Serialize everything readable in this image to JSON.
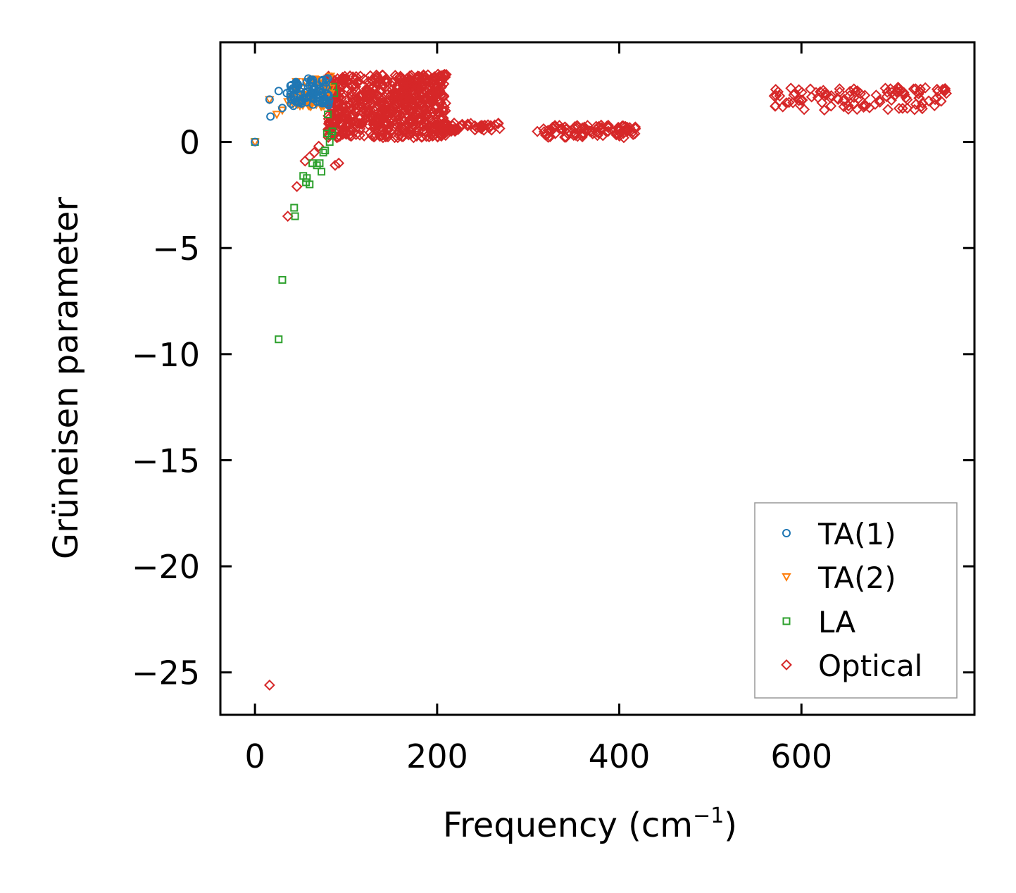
{
  "chart_data": {
    "type": "scatter",
    "title": "",
    "xlabel": "Frequency (cm",
    "xlabel_sup": "−1",
    "xlabel_close": ")",
    "ylabel": "Grüneisen parameter",
    "xlim": [
      -38,
      790
    ],
    "ylim": [
      -27,
      4.7
    ],
    "xticks": [
      0,
      200,
      400,
      600
    ],
    "xtick_labels": [
      "0",
      "200",
      "400",
      "600"
    ],
    "yticks": [
      0,
      -5,
      -10,
      -15,
      -20,
      -25
    ],
    "ytick_labels": [
      "0",
      "−5",
      "−10",
      "−15",
      "−20",
      "−25"
    ],
    "grid": false,
    "legend_position": "lower-right",
    "series": [
      {
        "name": "TA(1)",
        "marker": "circle",
        "color": "#1f77b4",
        "x": [
          0,
          16,
          17,
          26,
          30,
          35,
          40,
          45,
          50,
          55,
          60,
          65,
          70,
          75,
          78,
          80
        ],
        "y": [
          0,
          2.0,
          1.2,
          2.4,
          1.6,
          2.3,
          2.0,
          1.9,
          2.2,
          2.3,
          2.2,
          2.3,
          2.4,
          2.6,
          2.8,
          3.0
        ],
        "band": {
          "x_min": 38,
          "x_max": 82,
          "y_min": 1.7,
          "y_max": 3.0,
          "n": 90
        }
      },
      {
        "name": "TA(2)",
        "marker": "triangle-down",
        "color": "#ff7f0e",
        "x": [
          0,
          16,
          24,
          30,
          36,
          42,
          50,
          58,
          66,
          74,
          80,
          83
        ],
        "y": [
          0,
          2.0,
          1.3,
          1.5,
          1.9,
          1.8,
          2.0,
          2.1,
          2.3,
          2.6,
          3.0,
          3.1
        ],
        "band": {
          "x_min": 40,
          "x_max": 84,
          "y_min": 1.6,
          "y_max": 3.0,
          "n": 50
        }
      },
      {
        "name": "LA",
        "marker": "square",
        "color": "#2ca02c",
        "x": [
          0,
          26,
          30,
          43,
          44,
          53,
          56,
          57,
          60,
          63,
          68,
          71,
          73,
          75,
          77,
          79,
          80,
          82,
          84,
          85,
          86,
          87
        ],
        "y": [
          0,
          -9.3,
          -6.5,
          -3.1,
          -3.5,
          -1.6,
          -1.9,
          -1.7,
          -2.0,
          -1.0,
          -1.1,
          -1.0,
          -1.4,
          -0.5,
          -0.4,
          0.4,
          1.3,
          0.0,
          0.3,
          0.5,
          2.6,
          2.3
        ]
      },
      {
        "name": "Optical",
        "marker": "diamond",
        "color": "#d62728",
        "x": [
          16,
          36,
          46,
          55,
          60,
          65,
          70,
          88,
          92
        ],
        "y": [
          -25.6,
          -3.5,
          -2.1,
          -0.9,
          -0.7,
          -0.5,
          -0.2,
          -1.1,
          -1.0
        ],
        "bands": [
          {
            "x_min": 80,
            "x_max": 210,
            "y_min": 0.2,
            "y_max": 3.2,
            "n": 700
          },
          {
            "x_min": 200,
            "x_max": 270,
            "y_min": 0.5,
            "y_max": 0.9,
            "n": 60
          },
          {
            "x_min": 310,
            "x_max": 420,
            "y_min": 0.2,
            "y_max": 0.8,
            "n": 90
          },
          {
            "x_min": 570,
            "x_max": 760,
            "y_min": 1.5,
            "y_max": 2.6,
            "n": 110
          }
        ]
      }
    ]
  }
}
